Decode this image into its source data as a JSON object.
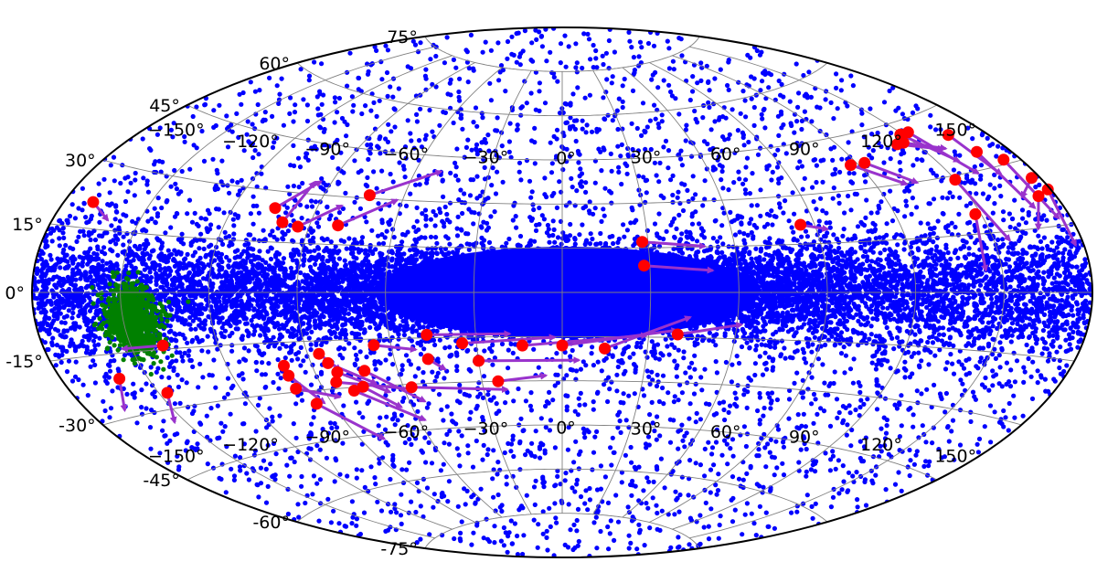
{
  "chart_data": {
    "type": "scatter",
    "projection": "aitoff",
    "title": "",
    "grid": true,
    "lat_tick_labels": [
      "75°",
      "60°",
      "45°",
      "30°",
      "15°",
      "0°",
      "-15°",
      "-30°",
      "-45°",
      "-60°",
      "-75°"
    ],
    "lon_tick_labels": [
      "−150°",
      "−120°",
      "−90°",
      "−60°",
      "−30°",
      "0°",
      "30°",
      "60°",
      "90°",
      "120°",
      "150°"
    ],
    "lon_tick_values": [
      -150,
      -120,
      -90,
      -60,
      -30,
      0,
      30,
      60,
      90,
      120,
      150
    ],
    "lat_tick_values": [
      75,
      60,
      45,
      30,
      15,
      0,
      -15,
      -30,
      -45,
      -60,
      -75
    ],
    "xlim": [
      -180,
      180
    ],
    "ylim": [
      -90,
      90
    ],
    "colors": {
      "field": "#0000ff",
      "cloud": "#008000",
      "highlight": "#ff0000",
      "arrow": "#9933cc",
      "grid": "#808080"
    },
    "series": [
      {
        "kind": "background",
        "color": "#0000ff",
        "approx_count": 16000
      },
      {
        "kind": "cluster",
        "color": "#008000",
        "center_lon": -147,
        "center_lat": -7,
        "approx_count": 900
      },
      {
        "kind": "moving",
        "color": "#ff0000",
        "points": [
          {
            "lon": -170,
            "lat": 21,
            "dlon": 5,
            "dlat": -2
          },
          {
            "lon": -105,
            "lat": 25,
            "dlon": 6,
            "dlat": 5
          },
          {
            "lon": -100,
            "lat": 21,
            "dlon": 2,
            "dlat": 7
          },
          {
            "lon": -94,
            "lat": 20,
            "dlon": 7,
            "dlat": 4
          },
          {
            "lon": -80,
            "lat": 21,
            "dlon": 10,
            "dlat": 5
          },
          {
            "lon": -73,
            "lat": 31,
            "dlon": 13,
            "dlat": 5
          },
          {
            "lon": 28,
            "lat": 17,
            "dlon": 12,
            "dlat": -1
          },
          {
            "lon": 28,
            "lat": 9,
            "dlon": 13,
            "dlat": -1
          },
          {
            "lon": 85,
            "lat": 21,
            "dlon": 5,
            "dlat": -1
          },
          {
            "lon": 117,
            "lat": 37,
            "dlon": 8,
            "dlat": -4
          },
          {
            "lon": 123,
            "lat": 37,
            "dlon": 7,
            "dlat": -4
          },
          {
            "lon": 143,
            "lat": 40,
            "dlon": 8,
            "dlat": -2
          },
          {
            "lon": 146,
            "lat": 40,
            "dlon": 7,
            "dlat": -2
          },
          {
            "lon": 149,
            "lat": 42,
            "dlon": 5,
            "dlat": -5
          },
          {
            "lon": 153,
            "lat": 42,
            "dlon": 4,
            "dlat": -7
          },
          {
            "lon": 150,
            "lat": 29,
            "dlon": 3,
            "dlat": -9
          },
          {
            "lon": 148,
            "lat": 20,
            "dlon": -2,
            "dlat": -8
          },
          {
            "lon": 166,
            "lat": 39,
            "dlon": 1,
            "dlat": -6
          },
          {
            "lon": 168,
            "lat": 34,
            "dlon": 1,
            "dlat": -8
          },
          {
            "lon": 174,
            "lat": 31,
            "dlon": 1,
            "dlat": -8
          },
          {
            "lon": 174,
            "lat": 22,
            "dlon": -4,
            "dlat": -4
          },
          {
            "lon": 177,
            "lat": 26,
            "dlon": -5,
            "dlat": -2
          },
          {
            "lon": 179,
            "lat": 23,
            "dlon": -1,
            "dlat": -7
          },
          {
            "lon": -139,
            "lat": -14,
            "dlon": -8,
            "dlat": 0
          },
          {
            "lon": -160,
            "lat": -21,
            "dlon": -4,
            "dlat": -4
          },
          {
            "lon": -147,
            "lat": -26,
            "dlon": -4,
            "dlat": -4
          },
          {
            "lon": -100,
            "lat": -22,
            "dlon": 1,
            "dlat": -4
          },
          {
            "lon": -100,
            "lat": -25,
            "dlon": 4,
            "dlat": -5
          },
          {
            "lon": -100,
            "lat": -29,
            "dlon": 8,
            "dlat": -2
          },
          {
            "lon": -96,
            "lat": -34,
            "dlon": 9,
            "dlat": -7
          },
          {
            "lon": -86,
            "lat": -19,
            "dlon": 3,
            "dlat": -3
          },
          {
            "lon": -84,
            "lat": -22,
            "dlon": 8,
            "dlat": -4
          },
          {
            "lon": -82,
            "lat": -25,
            "dlon": 9,
            "dlat": -4
          },
          {
            "lon": -84,
            "lat": -28,
            "dlon": 15,
            "dlat": -2
          },
          {
            "lon": -72,
            "lat": -25,
            "dlon": 10,
            "dlat": -6
          },
          {
            "lon": -79,
            "lat": -31,
            "dlon": 12,
            "dlat": -6
          },
          {
            "lon": -66,
            "lat": -17,
            "dlon": 8,
            "dlat": -1
          },
          {
            "lon": -57,
            "lat": -31,
            "dlon": 20,
            "dlat": -1
          },
          {
            "lon": -47,
            "lat": -14,
            "dlon": 16,
            "dlat": 0
          },
          {
            "lon": -30,
            "lat": -23,
            "dlon": 20,
            "dlat": 0
          },
          {
            "lon": -24,
            "lat": -30,
            "dlon": 10,
            "dlat": 1
          },
          {
            "lon": -14,
            "lat": -18,
            "dlon": 24,
            "dlat": 2
          },
          {
            "lon": 0,
            "lat": -18,
            "dlon": 22,
            "dlat": 3
          },
          {
            "lon": 15,
            "lat": -19,
            "dlon": 16,
            "dlat": 6
          },
          {
            "lon": 40,
            "lat": -14,
            "dlon": 12,
            "dlat": 2
          },
          {
            "lon": -48,
            "lat": -22,
            "dlon": 3,
            "dlat": -2
          },
          {
            "lon": -75,
            "lat": -30,
            "dlon": 6,
            "dlat": -4
          },
          {
            "lon": -35,
            "lat": -17,
            "dlon": 18,
            "dlat": 1
          }
        ]
      }
    ]
  }
}
